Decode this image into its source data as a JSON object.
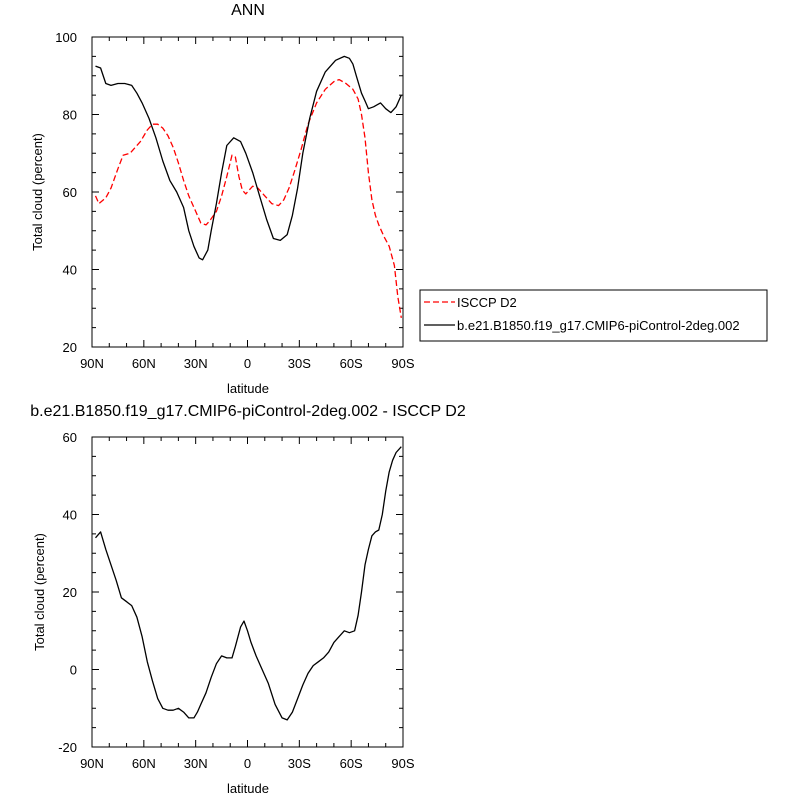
{
  "chart_data": [
    {
      "type": "line",
      "title": "ANN",
      "xlabel": "latitude",
      "ylabel": "Total cloud (percent)",
      "xlim": [
        90,
        -90
      ],
      "ylim": [
        20,
        100
      ],
      "x_ticks": [
        90,
        60,
        30,
        0,
        -30,
        -60,
        -90
      ],
      "x_tick_labels": [
        "90N",
        "60N",
        "30N",
        "0",
        "30S",
        "60S",
        "90S"
      ],
      "y_ticks": [
        20,
        40,
        60,
        80,
        100
      ],
      "y_tick_labels": [
        "20",
        "40",
        "60",
        "80",
        "100"
      ],
      "legend_position": "right",
      "series": [
        {
          "name": "ISCCP D2",
          "color": "#ff0000",
          "dash": "dashed",
          "x": [
            88,
            86,
            82,
            79,
            75,
            72,
            68,
            65,
            62,
            58,
            55,
            52,
            49,
            46,
            43,
            40,
            37,
            34,
            30,
            27,
            24,
            22,
            18,
            15,
            12,
            9,
            7,
            5,
            3,
            1,
            -1,
            -3,
            -6,
            -10,
            -14,
            -18,
            -21,
            -24,
            -27,
            -31,
            -35,
            -40,
            -45,
            -50,
            -53,
            -57,
            -61,
            -64,
            -66,
            -68,
            -70,
            -72,
            -74,
            -76,
            -79,
            -82,
            -85,
            -87,
            -89
          ],
          "y": [
            59,
            57,
            58.5,
            61,
            66,
            69.5,
            70,
            71.5,
            73,
            76,
            77.5,
            77.5,
            76.5,
            74.5,
            71.5,
            67.5,
            63,
            59,
            55,
            52,
            51.5,
            52.5,
            55,
            59,
            64,
            69.5,
            69,
            64,
            60.5,
            59.5,
            60.5,
            61.5,
            61,
            59,
            57,
            56.5,
            58,
            61,
            65,
            71,
            77.5,
            83,
            86.5,
            88.5,
            89,
            88,
            86.5,
            84,
            80,
            74,
            65,
            58,
            54,
            51.5,
            48.5,
            46,
            41,
            33,
            27.5
          ]
        },
        {
          "name": "b.e21.B1850.f19_g17.CMIP6-piControl-2deg.002",
          "color": "#000000",
          "dash": "solid",
          "x": [
            88,
            85,
            82,
            79,
            75,
            71,
            67,
            64,
            61,
            57,
            53,
            49,
            45,
            41,
            37,
            34,
            31,
            28,
            26,
            23,
            21,
            18,
            15,
            12,
            8,
            4,
            1,
            -3,
            -7,
            -11,
            -15,
            -19,
            -23,
            -26,
            -29,
            -32,
            -36,
            -40,
            -45,
            -51,
            -56,
            -59,
            -61,
            -63,
            -66,
            -68,
            -70,
            -73,
            -75,
            -77,
            -80,
            -83,
            -86,
            -89
          ],
          "y": [
            92.5,
            92,
            88,
            87.5,
            88,
            88,
            87.5,
            85.5,
            83,
            79,
            74,
            68,
            63,
            60,
            56,
            50,
            46,
            43,
            42.5,
            45,
            50,
            57,
            65,
            72,
            74,
            73,
            70,
            65,
            59,
            53,
            48,
            47.5,
            49,
            54,
            61,
            70,
            79,
            86,
            91,
            94,
            95,
            94.5,
            93,
            90,
            85.5,
            83.5,
            81.5,
            82,
            82.5,
            83,
            81.5,
            80.5,
            82,
            85
          ]
        }
      ]
    },
    {
      "type": "line",
      "title": "b.e21.B1850.f19_g17.CMIP6-piControl-2deg.002 - ISCCP D2",
      "xlabel": "latitude",
      "ylabel": "Total cloud (percent)",
      "xlim": [
        90,
        -90
      ],
      "ylim": [
        -20,
        60
      ],
      "x_ticks": [
        90,
        60,
        30,
        0,
        -30,
        -60,
        -90
      ],
      "x_tick_labels": [
        "90N",
        "60N",
        "30N",
        "0",
        "30S",
        "60S",
        "90S"
      ],
      "y_ticks": [
        -20,
        0,
        20,
        40,
        60
      ],
      "y_tick_labels": [
        "-20",
        "0",
        "20",
        "40",
        "60"
      ],
      "series": [
        {
          "color": "#000000",
          "dash": "solid",
          "x": [
            88,
            85,
            82,
            79,
            76,
            73,
            70,
            67,
            64,
            61,
            58,
            55,
            52,
            49,
            46,
            43,
            40,
            37,
            34,
            31,
            29,
            27,
            24,
            21,
            18,
            15,
            12,
            9,
            7,
            4,
            2,
            0,
            -2,
            -5,
            -8,
            -12,
            -16,
            -20,
            -23,
            -26,
            -29,
            -32,
            -35,
            -38,
            -41,
            -44,
            -47,
            -50,
            -53,
            -56,
            -59,
            -62,
            -64,
            -66,
            -68,
            -70,
            -72,
            -74,
            -76,
            -78,
            -80,
            -82,
            -84,
            -86,
            -89
          ],
          "y": [
            34,
            35.5,
            31,
            27,
            23,
            18.5,
            17.5,
            16.5,
            13.5,
            8.5,
            2,
            -3,
            -7.5,
            -10,
            -10.5,
            -10.5,
            -10,
            -11,
            -12.5,
            -12.5,
            -11,
            -9,
            -6,
            -2,
            1.5,
            3.5,
            3,
            3,
            6,
            11,
            12.5,
            10,
            7,
            3.5,
            0.5,
            -3.5,
            -9,
            -12.5,
            -13,
            -11,
            -7.5,
            -4,
            -1,
            1,
            2,
            3,
            4.5,
            7,
            8.5,
            10,
            9.5,
            10,
            14,
            20,
            27,
            31,
            34.5,
            35.5,
            36,
            40,
            46,
            51,
            54,
            56,
            57.5
          ]
        }
      ]
    }
  ]
}
